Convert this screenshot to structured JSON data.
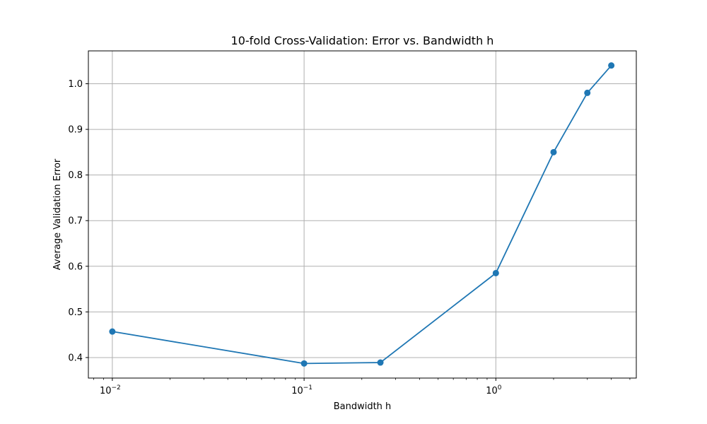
{
  "chart_data": {
    "type": "line",
    "title": "10-fold Cross-Validation: Error vs. Bandwidth h",
    "xlabel": "Bandwidth h",
    "ylabel": "Average Validation Error",
    "x_scale": "log",
    "xlim": [
      0.0075,
      5.4
    ],
    "ylim": [
      0.355,
      1.072
    ],
    "grid": true,
    "x_ticks": [
      {
        "value": 0.01,
        "base": "10",
        "exp": "−2"
      },
      {
        "value": 0.1,
        "base": "10",
        "exp": "−1"
      },
      {
        "value": 1,
        "base": "10",
        "exp": "0"
      }
    ],
    "y_ticks": [
      {
        "value": 0.4,
        "label": "0.4"
      },
      {
        "value": 0.5,
        "label": "0.5"
      },
      {
        "value": 0.6,
        "label": "0.6"
      },
      {
        "value": 0.7,
        "label": "0.7"
      },
      {
        "value": 0.8,
        "label": "0.8"
      },
      {
        "value": 0.9,
        "label": "0.9"
      },
      {
        "value": 1.0,
        "label": "1.0"
      }
    ],
    "series": [
      {
        "color": "#1f77b4",
        "marker": "circle",
        "x": [
          0.01,
          0.1,
          0.25,
          1,
          2,
          3,
          4
        ],
        "y": [
          0.457,
          0.387,
          0.389,
          0.585,
          0.85,
          0.98,
          1.04
        ]
      }
    ]
  }
}
